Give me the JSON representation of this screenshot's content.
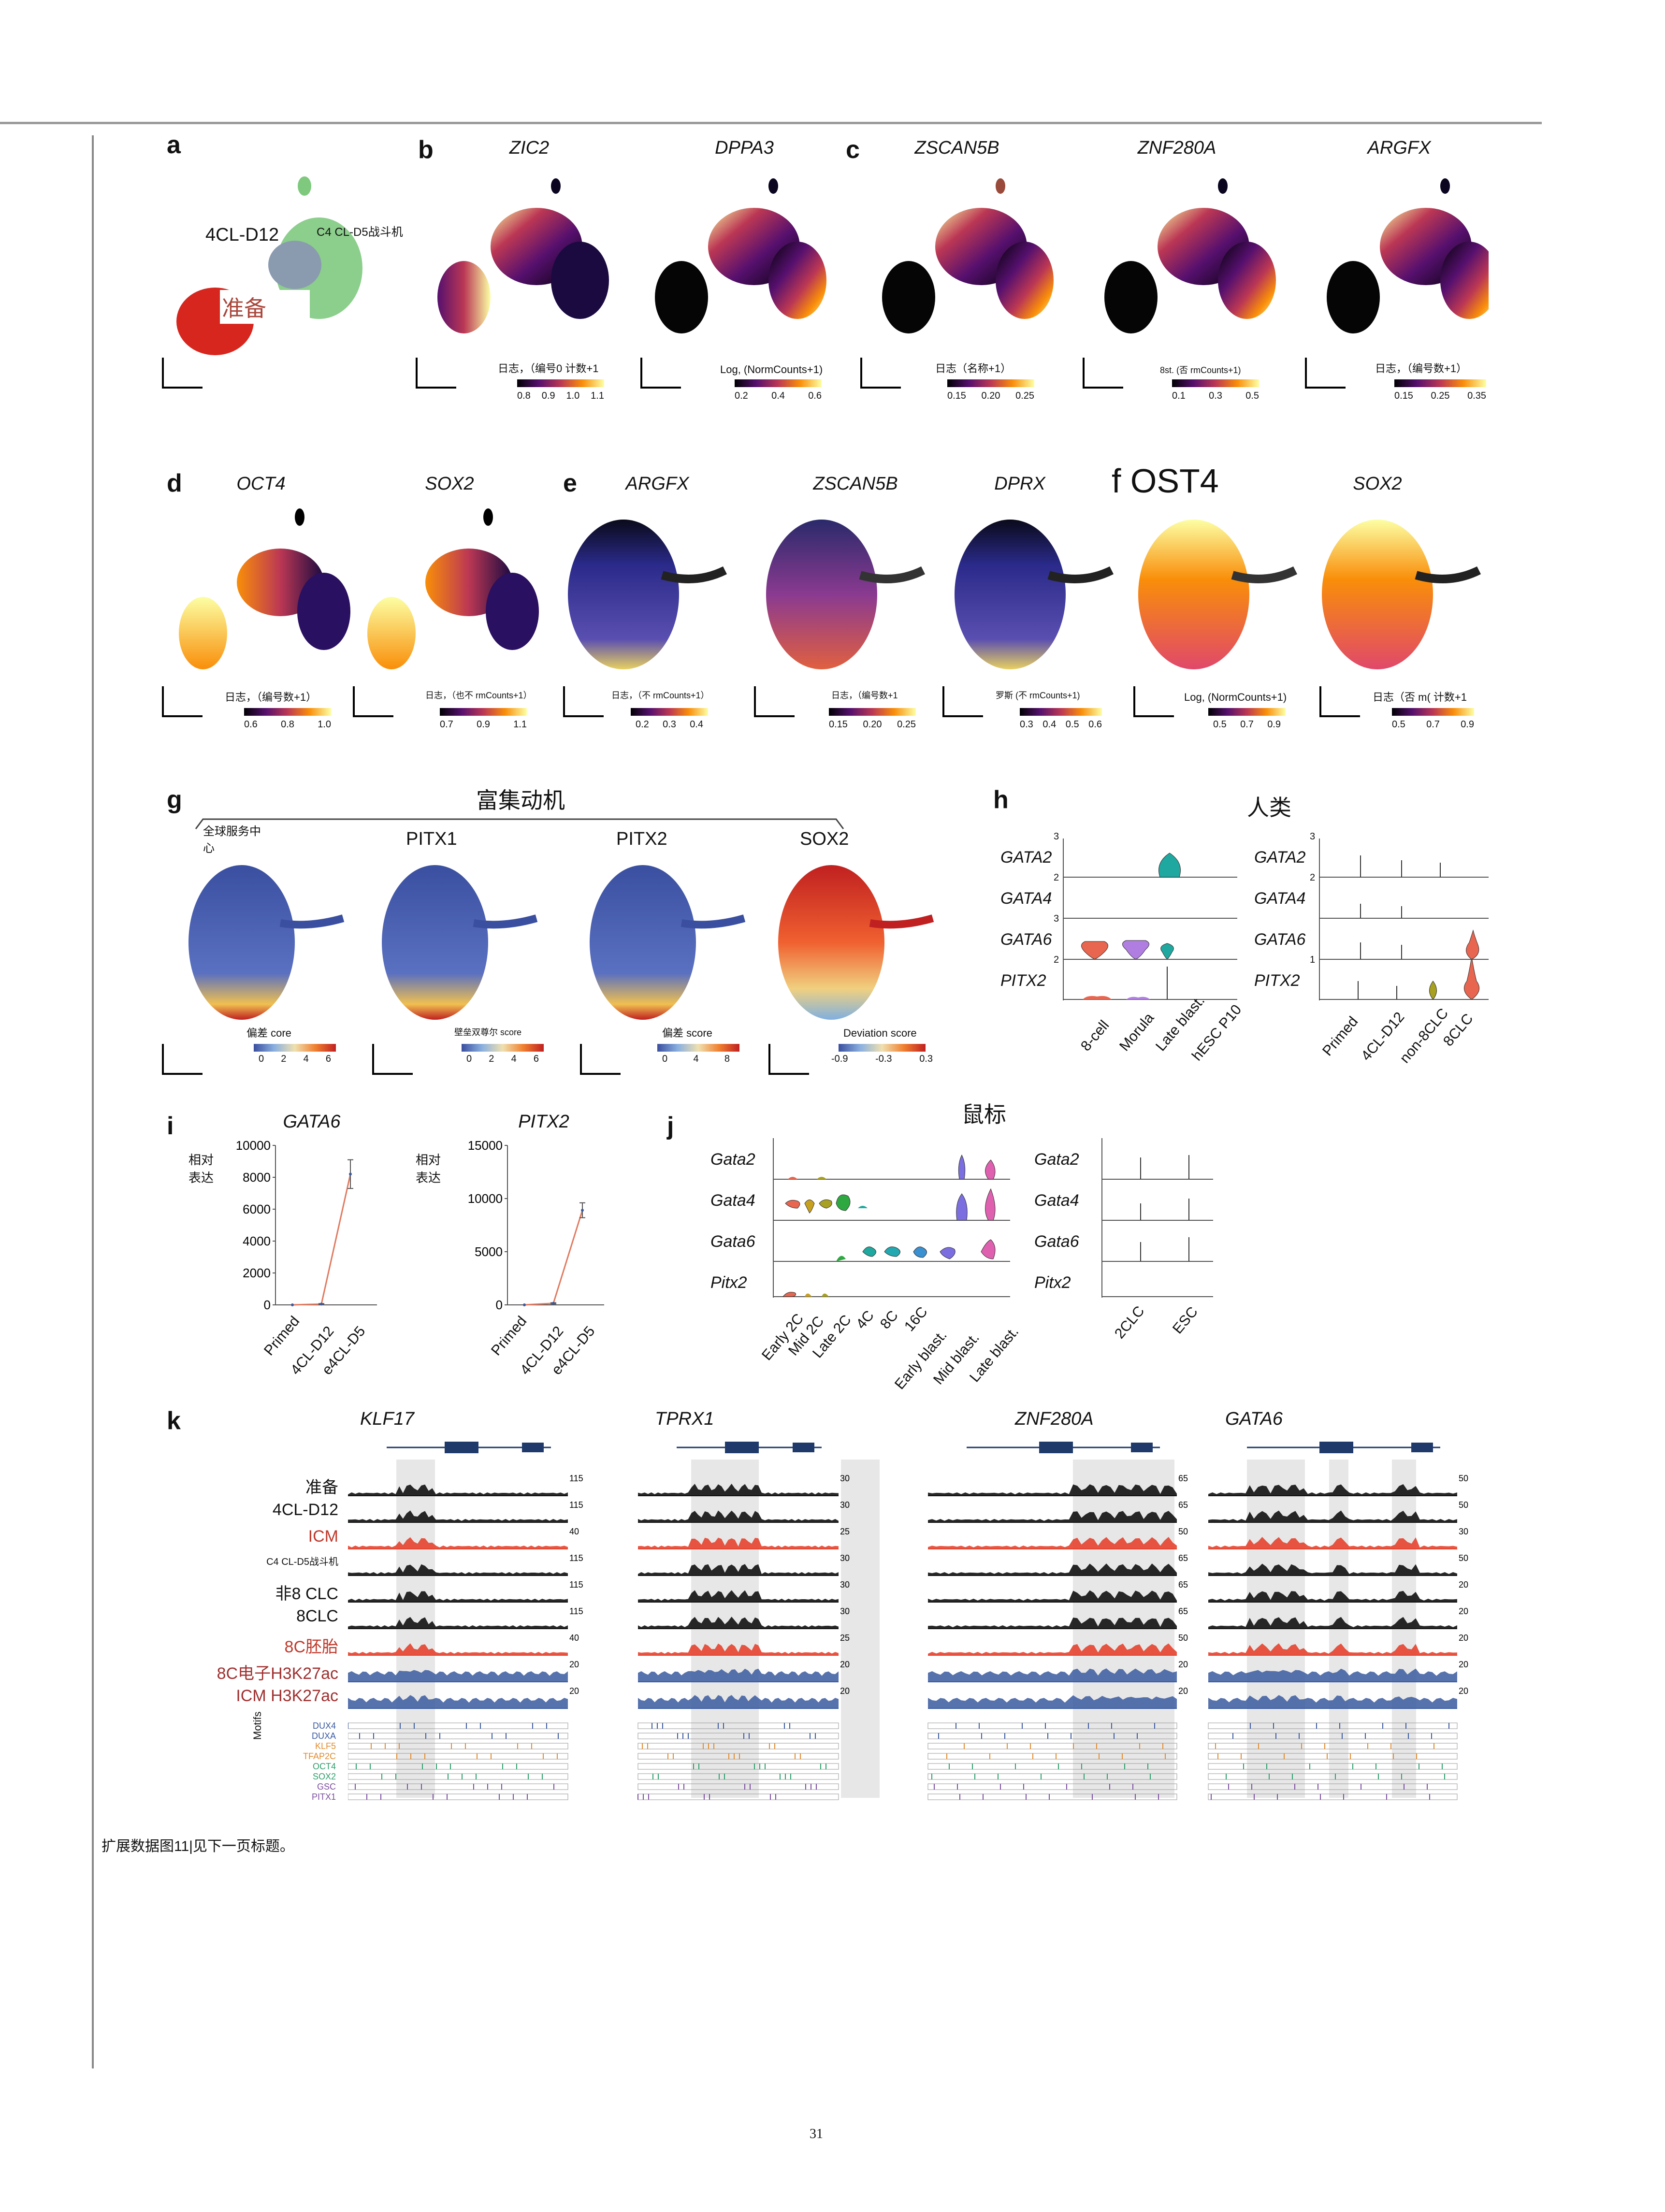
{
  "panel_letters": {
    "a": "a",
    "b": "b",
    "c": "c",
    "d": "d",
    "e": "e",
    "f": "f",
    "g": "g",
    "h": "h",
    "i": "i",
    "j": "j",
    "k": "k"
  },
  "colors": {
    "inferno_dark": "#000004",
    "inferno_purple": "#56106e",
    "inferno_red": "#bb3754",
    "inferno_orange": "#f98e09",
    "inferno_yellow": "#fcffa4",
    "red": "#e41a1c",
    "blue": "#3953a4",
    "green": "#7fc97f",
    "grey": "#8a9bb0"
  },
  "row1": {
    "a": {
      "label_4cl": "4CL-D12",
      "label_c4": "C4 CL-D5战斗机",
      "label_primed": "准备"
    },
    "b": {
      "genes": [
        "ZIC2",
        "DPPA3"
      ],
      "cbar_labels": [
        "日志，（编号0 计数+1",
        "Log, (NormCounts+1)"
      ],
      "cbar_ticks": [
        [
          "0.8",
          "0.9",
          "1.0",
          "1.1"
        ],
        [
          "0.2",
          "0.4",
          "0.6"
        ]
      ]
    },
    "c": {
      "genes": [
        "ZSCAN5B",
        "ZNF280A",
        "ARGFX"
      ],
      "cbar_labels": [
        "日志（名称+1）",
        "8st. (否 rmCounts+1)",
        "日志，（编号数+1）"
      ],
      "cbar_ticks": [
        [
          "0.15",
          "0.20",
          "0.25"
        ],
        [
          "0.1",
          "0.3",
          "0.5"
        ],
        [
          "0.15",
          "0.25",
          "0.35"
        ]
      ]
    }
  },
  "row2": {
    "d": {
      "genes": [
        "OCT4",
        "SOX2"
      ],
      "cbar_labels": [
        "日志，（编号数+1）",
        "日志，（也不 rmCounts+1）"
      ],
      "cbar_ticks": [
        [
          "0.6",
          "0.8",
          "1.0"
        ],
        [
          "0.7",
          "0.9",
          "1.1"
        ]
      ]
    },
    "e": {
      "genes": [
        "ARGFX",
        "ZSCAN5B",
        "DPRX"
      ],
      "cbar_labels": [
        "日志，（不 rmCounts+1）",
        "日志，（编号数+1",
        "罗斯 (不 rmCounts+1)"
      ],
      "cbar_ticks": [
        [
          "0.2",
          "0.3",
          "0.4"
        ],
        [
          "0.15",
          "0.20",
          "0.25"
        ],
        [
          "0.3",
          "0.4",
          "0.5",
          "0.6"
        ]
      ]
    },
    "f": {
      "title": "f OST4",
      "second_gene": "SOX2",
      "cbar_labels": [
        "Log, (NormCounts+1)",
        "日志（否 m( 计数+1"
      ],
      "cbar_ticks": [
        [
          "0.5",
          "0.7",
          "0.9"
        ],
        [
          "0.5",
          "0.7",
          "0.9"
        ]
      ]
    }
  },
  "row3": {
    "g": {
      "header": "富集动机",
      "titles": [
        "全球服务中心",
        "PITX1",
        "PITX2",
        "SOX2"
      ],
      "cbar_labels": [
        "偏差 core",
        "壁垒双尊尔 score",
        "偏差 score",
        "Deviation score"
      ],
      "cbar_ticks": [
        [
          "0",
          "2",
          "4",
          "6"
        ],
        [
          "0",
          "2",
          "4",
          "6"
        ],
        [
          "0",
          "4",
          "8"
        ],
        [
          "-0.9",
          "-0.3",
          "0.3"
        ]
      ]
    },
    "h": {
      "header": "人类",
      "genes": [
        "GATA2",
        "GATA4",
        "GATA6",
        "PITX2"
      ],
      "left_x": [
        "8-cell",
        "Morula",
        "Late blast.",
        "hESC P10"
      ],
      "right_x": [
        "Primed",
        "4CL-D12",
        "non-8CLC",
        "8CLC"
      ],
      "axis_ticks": [
        "3",
        "2",
        "3",
        "2",
        "3",
        "2",
        "1"
      ]
    }
  },
  "row4": {
    "i": {
      "ylabel": "相对\n表达",
      "charts": [
        {
          "gene": "GATA6",
          "yticks": [
            "10000",
            "8000",
            "6000",
            "4000",
            "2000",
            "0"
          ]
        },
        {
          "gene": "PITX2",
          "yticks": [
            "15000",
            "10000",
            "5000",
            "0"
          ]
        }
      ],
      "categories": [
        "Primed",
        "4CL-D12",
        "e4CL-D5"
      ]
    },
    "j": {
      "header": "鼠标",
      "genes": [
        "Gata2",
        "Gata4",
        "Gata6",
        "Pitx2"
      ],
      "left_x": [
        "Early 2C",
        "Mid 2C",
        "Late 2C",
        "4C",
        "8C",
        "16C",
        "Early blast.",
        "Mid blast.",
        "Late blast."
      ],
      "right_x": [
        "2CLC",
        "ESC"
      ]
    }
  },
  "row5": {
    "k": {
      "loci": [
        "KLF17",
        "TPRX1",
        "ZNF280A",
        "GATA6"
      ],
      "tracks": [
        "准备",
        "4CL-D12",
        "ICM",
        "C4 CL-D5战斗机",
        "非8 CLC",
        "8CLC",
        "8C胚胎",
        "8C电子H3K27ac",
        "ICM H3K27ac"
      ],
      "track_colors": [
        "#111111",
        "#111111",
        "#e5432d",
        "#111111",
        "#111111",
        "#111111",
        "#e5432d",
        "#3a5aa0",
        "#3a5aa0"
      ],
      "scales": [
        [
          "115",
          "115",
          "40",
          "115",
          "115",
          "115",
          "40",
          "20",
          "20"
        ],
        [
          "30",
          "30",
          "25",
          "30",
          "30",
          "30",
          "25",
          "20",
          "20"
        ],
        [
          "65",
          "65",
          "50",
          "65",
          "65",
          "65",
          "50",
          "20",
          "20"
        ],
        [
          "50",
          "50",
          "30",
          "50",
          "20",
          "20",
          "20",
          "20",
          "20"
        ]
      ],
      "motifs": [
        "DUX4",
        "DUXA",
        "KLF5",
        "TFAP2C",
        "OCT4",
        "SOX2",
        "GSC",
        "PITX1"
      ],
      "motif_colors": [
        "#3a5aa0",
        "#3a5aa0",
        "#e08b2e",
        "#e08b2e",
        "#2e9e6b",
        "#2e9e6b",
        "#7b4ea0",
        "#7b4ea0"
      ],
      "motifs_axis": "Motifs"
    }
  },
  "caption": "扩展数据图11|见下一页标题。",
  "page_number": "31",
  "chart_data": [
    {
      "type": "line",
      "title": "GATA6",
      "ylabel": "相对\n表达",
      "categories": [
        "Primed",
        "4CL-D12",
        "e4CL-D5"
      ],
      "values": [
        0,
        50,
        8200
      ],
      "error": [
        0,
        30,
        900
      ],
      "ylim": [
        0,
        10000
      ]
    },
    {
      "type": "line",
      "title": "PITX2",
      "ylabel": "相对\n表达",
      "categories": [
        "Primed",
        "4CL-D12",
        "e4CL-D5"
      ],
      "values": [
        0,
        150,
        8900
      ],
      "error": [
        0,
        50,
        700
      ],
      "ylim": [
        0,
        15000
      ]
    }
  ]
}
